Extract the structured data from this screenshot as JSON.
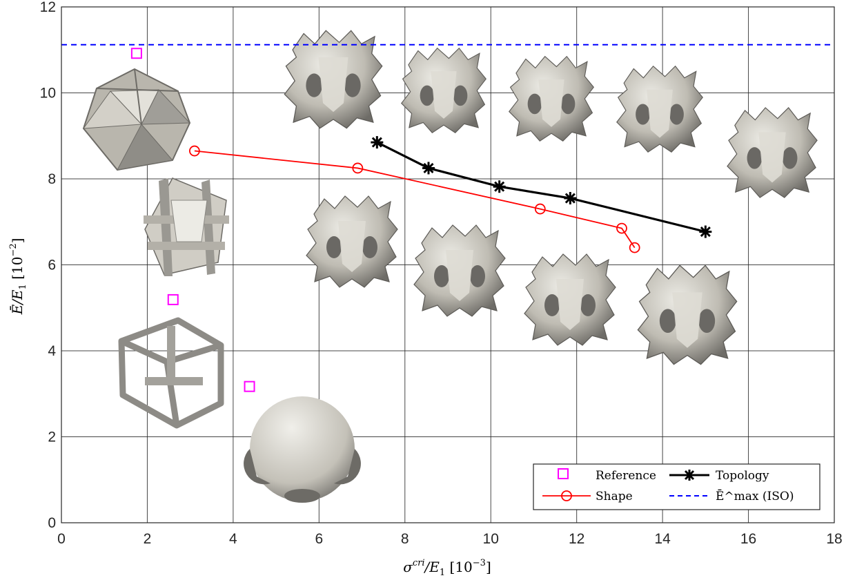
{
  "chart_data": {
    "type": "line",
    "xlabel": "σ^cri / E_1 [10^-3]",
    "ylabel": "Ē / E_1 [10^-2]",
    "xlim": [
      0,
      18
    ],
    "ylim": [
      0,
      12
    ],
    "xticks": [
      0,
      2,
      4,
      6,
      8,
      10,
      12,
      14,
      16,
      18
    ],
    "yticks": [
      0,
      2,
      4,
      6,
      8,
      10,
      12
    ],
    "grid": true,
    "legend_position": "bottom-right",
    "series": [
      {
        "name": "Reference",
        "style": "markers",
        "marker": "square",
        "color": "#ff00ff",
        "points": [
          [
            1.75,
            10.92
          ],
          [
            2.6,
            5.19
          ],
          [
            4.38,
            3.17
          ]
        ]
      },
      {
        "name": "Shape",
        "style": "line",
        "marker": "circle",
        "color": "#ff0000",
        "points": [
          [
            3.1,
            8.65
          ],
          [
            6.9,
            8.25
          ],
          [
            11.15,
            7.3
          ],
          [
            13.05,
            6.85
          ],
          [
            13.35,
            6.4
          ]
        ]
      },
      {
        "name": "Topology",
        "style": "line",
        "marker": "asterisk",
        "color": "#000000",
        "points": [
          [
            7.35,
            8.85
          ],
          [
            8.55,
            8.25
          ],
          [
            10.2,
            7.82
          ],
          [
            11.85,
            7.55
          ],
          [
            15.0,
            6.77
          ]
        ]
      },
      {
        "name": "Ē^max (ISO)",
        "style": "dashed",
        "color": "#0000ff",
        "y": 11.12
      }
    ],
    "legend": [
      {
        "label": "Reference"
      },
      {
        "label": "Topology"
      },
      {
        "label": "Shape"
      },
      {
        "label": "Ē^max (ISO)"
      }
    ]
  },
  "insets": [
    {
      "name": "icosahedral-truss-cell"
    },
    {
      "name": "plate-lattice-cell"
    },
    {
      "name": "cubic-frame-cell"
    },
    {
      "name": "sphere-cell"
    },
    {
      "name": "shape-cell-1"
    },
    {
      "name": "shape-cell-2"
    },
    {
      "name": "shape-cell-3"
    },
    {
      "name": "shape-cell-4"
    },
    {
      "name": "topology-cell-1"
    },
    {
      "name": "topology-cell-2"
    },
    {
      "name": "topology-cell-3"
    },
    {
      "name": "topology-cell-4"
    },
    {
      "name": "topology-cell-5"
    }
  ],
  "colors": {
    "cell_fill": "#c9c6bd",
    "cell_shadow": "#6f6d68",
    "cell_light": "#ebe9e2"
  }
}
